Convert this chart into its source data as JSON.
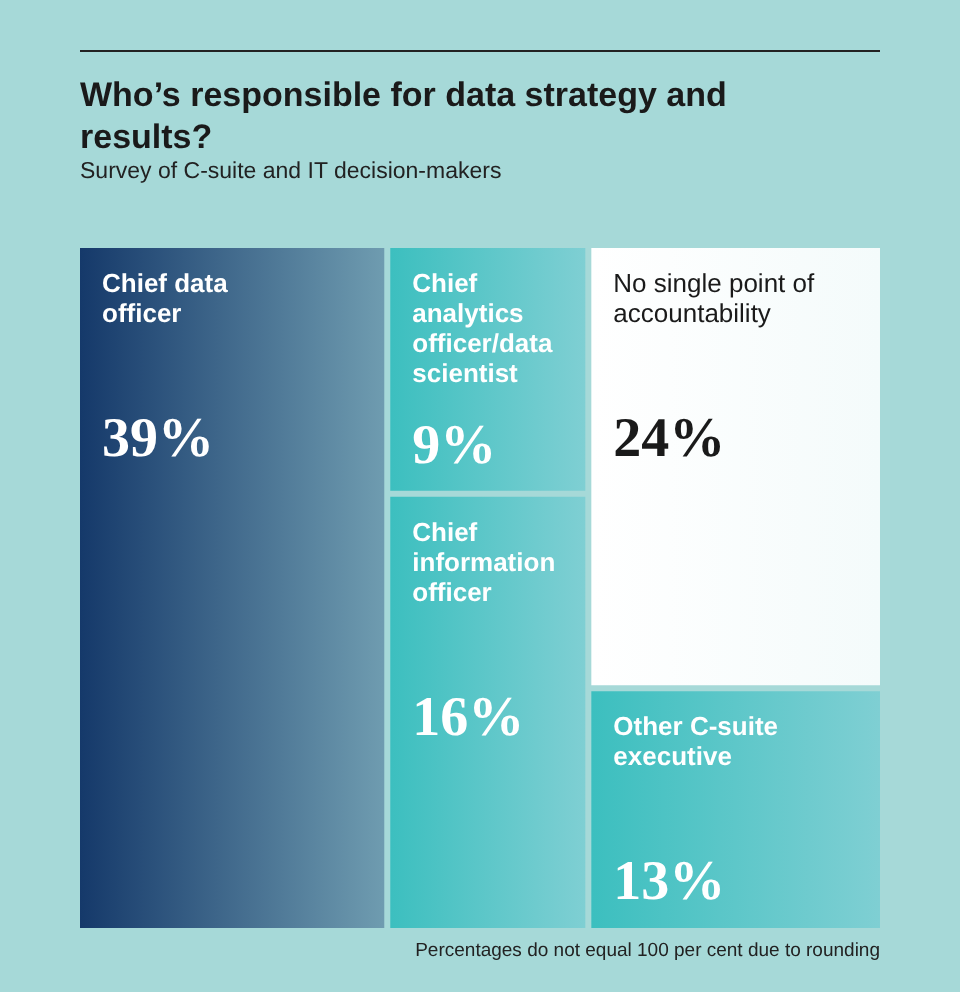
{
  "chart_data": {
    "type": "other",
    "title": "Who’s responsible for data strategy and results?",
    "subtitle": "Survey of C-suite and IT decision-makers",
    "categories": [
      "Chief data officer",
      "Chief analytics officer/data scientist",
      "Chief information officer",
      "No single point of accountability",
      "Other C-suite executive"
    ],
    "values": [
      39,
      9,
      16,
      24,
      13
    ],
    "value_labels": [
      "39%",
      "9%",
      "16%",
      "24%",
      "13%"
    ],
    "colors": [
      "#15396a",
      "#3cbfbf",
      "#3cbfbf",
      "#ffffff",
      "#3cbfbf"
    ],
    "annotations": [
      "Percentages do not equal 100 per cent due to rounding"
    ]
  }
}
